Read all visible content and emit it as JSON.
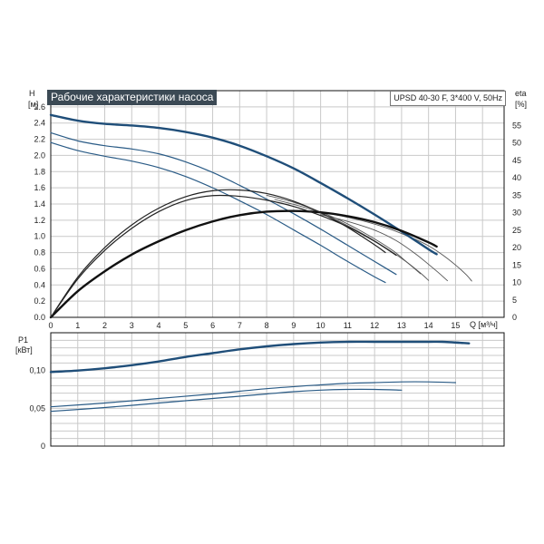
{
  "chart_data": [
    {
      "type": "line",
      "title": "Рабочие характеристики насоса",
      "model": "UPSD 40-30 F, 3*400 V, 50Hz",
      "y_label": "H",
      "y_unit": "[м]",
      "y2_label": "eta",
      "y2_unit": "[%]",
      "x_label": "Q [м³/ч]",
      "xlim": [
        0,
        16.8
      ],
      "ylim": [
        0,
        2.8
      ],
      "y2lim": [
        0,
        65
      ],
      "x_ticks": [
        0,
        1,
        2,
        3,
        4,
        5,
        6,
        7,
        8,
        9,
        10,
        11,
        12,
        13,
        14,
        15
      ],
      "y_ticks": [
        "0.0",
        "0.2",
        "0.4",
        "0.6",
        "0.8",
        "1.0",
        "1.2",
        "1.4",
        "1.6",
        "1.8",
        "2.0",
        "2.2",
        "2.4",
        "2.6"
      ],
      "y2_ticks": [
        0,
        5,
        10,
        15,
        20,
        25,
        30,
        35,
        40,
        45,
        50,
        55
      ],
      "grid": true,
      "head_series": [
        {
          "axis": "H",
          "emphasis": "primary",
          "points": [
            [
              0,
              2.5
            ],
            [
              1,
              2.43
            ],
            [
              2,
              2.39
            ],
            [
              3,
              2.37
            ],
            [
              4,
              2.34
            ],
            [
              5,
              2.29
            ],
            [
              6,
              2.22
            ],
            [
              7,
              2.12
            ],
            [
              8,
              1.99
            ],
            [
              9,
              1.84
            ],
            [
              10,
              1.66
            ],
            [
              11,
              1.47
            ],
            [
              12,
              1.27
            ],
            [
              13,
              1.06
            ],
            [
              14,
              0.84
            ],
            [
              14.3,
              0.78
            ]
          ]
        },
        {
          "axis": "H",
          "emphasis": "secondary",
          "points": [
            [
              0,
              2.28
            ],
            [
              1,
              2.18
            ],
            [
              2,
              2.12
            ],
            [
              3,
              2.08
            ],
            [
              4,
              2.02
            ],
            [
              5,
              1.92
            ],
            [
              6,
              1.79
            ],
            [
              7,
              1.63
            ],
            [
              8,
              1.46
            ],
            [
              9,
              1.28
            ],
            [
              10,
              1.09
            ],
            [
              11,
              0.89
            ],
            [
              12,
              0.69
            ],
            [
              12.8,
              0.53
            ]
          ]
        },
        {
          "axis": "H",
          "emphasis": "secondary",
          "points": [
            [
              0,
              2.16
            ],
            [
              1,
              2.06
            ],
            [
              2,
              1.99
            ],
            [
              3,
              1.93
            ],
            [
              4,
              1.85
            ],
            [
              5,
              1.74
            ],
            [
              6,
              1.6
            ],
            [
              7,
              1.44
            ],
            [
              8,
              1.27
            ],
            [
              9,
              1.08
            ],
            [
              10,
              0.89
            ],
            [
              11,
              0.69
            ],
            [
              12,
              0.5
            ],
            [
              12.4,
              0.43
            ]
          ]
        }
      ],
      "efficiency_series": [
        {
          "axis": "eta",
          "emphasis": "primary",
          "points": [
            [
              0,
              0
            ],
            [
              1,
              7.5
            ],
            [
              2,
              13.2
            ],
            [
              3,
              18.0
            ],
            [
              4,
              21.8
            ],
            [
              5,
              25.0
            ],
            [
              6,
              27.5
            ],
            [
              7,
              29.3
            ],
            [
              8,
              30.3
            ],
            [
              9,
              30.5
            ],
            [
              10,
              30.1
            ],
            [
              11,
              29.0
            ],
            [
              12,
              27.3
            ],
            [
              13,
              24.8
            ],
            [
              14,
              21.5
            ],
            [
              14.3,
              20.3
            ]
          ]
        },
        {
          "axis": "eta",
          "emphasis": "secondary",
          "points": [
            [
              0,
              0
            ],
            [
              1,
              11.5
            ],
            [
              2,
              20.0
            ],
            [
              3,
              26.5
            ],
            [
              4,
              31.3
            ],
            [
              5,
              34.6
            ],
            [
              6,
              36.3
            ],
            [
              7,
              36.5
            ],
            [
              8,
              35.5
            ],
            [
              9,
              33.3
            ],
            [
              10,
              30.0
            ],
            [
              11,
              25.8
            ],
            [
              12,
              20.8
            ],
            [
              12.4,
              18.6
            ]
          ]
        },
        {
          "axis": "eta",
          "emphasis": "secondary",
          "points": [
            [
              0,
              0
            ],
            [
              1,
              11.0
            ],
            [
              2,
              19.2
            ],
            [
              3,
              25.5
            ],
            [
              4,
              30.3
            ],
            [
              5,
              33.5
            ],
            [
              6,
              34.9
            ],
            [
              7,
              34.7
            ],
            [
              8,
              33.6
            ],
            [
              9,
              31.8
            ],
            [
              10,
              29.2
            ],
            [
              11,
              26.0
            ],
            [
              12,
              21.8
            ],
            [
              12.8,
              17.8
            ]
          ]
        }
      ],
      "npsh_series": [
        {
          "axis": "eta",
          "points": [
            [
              10.5,
              29.5
            ],
            [
              11.5,
              27.8
            ],
            [
              12.5,
              25.5
            ],
            [
              13.5,
              22.4
            ],
            [
              14.0,
              20.5
            ],
            [
              14.5,
              18.0
            ],
            [
              15,
              15.0
            ],
            [
              15.4,
              12.2
            ],
            [
              15.6,
              10.4
            ]
          ]
        },
        {
          "axis": "eta",
          "points": [
            [
              10.0,
              29.5
            ],
            [
              11.0,
              27.5
            ],
            [
              12.0,
              25.0
            ],
            [
              12.8,
              22.0
            ],
            [
              13.5,
              18.3
            ],
            [
              14.0,
              15.2
            ],
            [
              14.4,
              12.6
            ],
            [
              14.7,
              10.5
            ]
          ]
        },
        {
          "axis": "eta",
          "points": [
            [
              8.3,
              33.8
            ],
            [
              9.5,
              31.3
            ],
            [
              10.5,
              28.2
            ],
            [
              11.5,
              24.2
            ],
            [
              12.5,
              19.5
            ],
            [
              13.2,
              15.8
            ],
            [
              13.7,
              12.7
            ],
            [
              14.0,
              10.6
            ]
          ]
        },
        {
          "axis": "eta",
          "points": [
            [
              8.0,
              35.0
            ],
            [
              9.0,
              33.0
            ],
            [
              10.0,
              30.2
            ],
            [
              11.0,
              26.8
            ],
            [
              12.0,
              22.5
            ],
            [
              12.7,
              19.0
            ],
            [
              13.2,
              15.8
            ],
            [
              13.7,
              12.5
            ]
          ]
        }
      ]
    },
    {
      "type": "line",
      "y_label": "P1",
      "y_unit": "[кВт]",
      "xlim": [
        0,
        16.8
      ],
      "ylim": [
        0,
        0.15
      ],
      "y_ticks": [
        "0",
        "0,05",
        "0,10"
      ],
      "grid": true,
      "series": [
        {
          "axis": "P1",
          "emphasis": "primary",
          "points": [
            [
              0,
              0.098
            ],
            [
              1,
              0.1
            ],
            [
              2,
              0.103
            ],
            [
              3,
              0.107
            ],
            [
              4,
              0.112
            ],
            [
              5,
              0.118
            ],
            [
              6,
              0.123
            ],
            [
              7,
              0.128
            ],
            [
              8,
              0.132
            ],
            [
              9,
              0.135
            ],
            [
              10,
              0.137
            ],
            [
              11,
              0.138
            ],
            [
              12,
              0.138
            ],
            [
              13,
              0.138
            ],
            [
              14,
              0.138
            ],
            [
              14.5,
              0.138
            ],
            [
              15.5,
              0.136
            ]
          ]
        },
        {
          "axis": "P1",
          "emphasis": "secondary",
          "points": [
            [
              0,
              0.052
            ],
            [
              2,
              0.057
            ],
            [
              4,
              0.063
            ],
            [
              6,
              0.069
            ],
            [
              8,
              0.076
            ],
            [
              10,
              0.081
            ],
            [
              11,
              0.083
            ],
            [
              12,
              0.084
            ],
            [
              13,
              0.085
            ],
            [
              14,
              0.085
            ],
            [
              15,
              0.084
            ]
          ]
        },
        {
          "axis": "P1",
          "emphasis": "secondary",
          "points": [
            [
              0,
              0.046
            ],
            [
              2,
              0.051
            ],
            [
              4,
              0.057
            ],
            [
              6,
              0.063
            ],
            [
              8,
              0.069
            ],
            [
              9,
              0.072
            ],
            [
              10,
              0.074
            ],
            [
              11,
              0.075
            ],
            [
              12,
              0.075
            ],
            [
              13,
              0.074
            ]
          ]
        }
      ]
    }
  ],
  "colors": {
    "head_primary": "#1f4e79",
    "head_secondary": "#2a5b86",
    "efficiency_primary": "#111111",
    "efficiency_secondary": "#222222",
    "npsh": "#555555",
    "power_primary": "#1f4e79",
    "power_secondary": "#2a5b86",
    "grid": "#c9c9c9",
    "axis": "#111111",
    "title_background": "#3c4a55",
    "title_text": "#ffffff"
  }
}
